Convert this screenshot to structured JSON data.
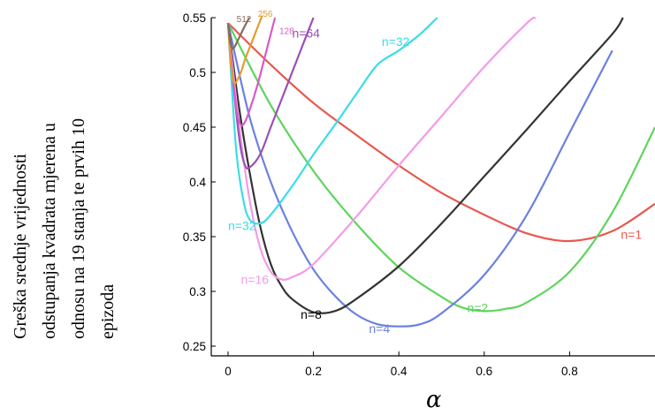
{
  "chart_data": {
    "type": "line",
    "ylabel_lines": [
      "Greška srednje vrijednosti",
      "odstupanja kvadrata  mjerena u",
      "odnosu na 19 stanja te prvih 10",
      "epizoda"
    ],
    "xlabel": "α",
    "xlim": [
      0,
      1.0
    ],
    "ylim": [
      0.25,
      0.55
    ],
    "xticks": [
      "0",
      "0.2",
      "0.4",
      "0.6",
      "0.8"
    ],
    "yticks": [
      "0.25",
      "0.3",
      "0.35",
      "0.4",
      "0.45",
      "0.5",
      "0.55"
    ],
    "grid": false,
    "series": [
      {
        "name": "n=1",
        "color": "#e8584f",
        "x": [
          0,
          0.1,
          0.2,
          0.3,
          0.4,
          0.5,
          0.6,
          0.7,
          0.8,
          0.9,
          1.0
        ],
        "y": [
          0.545,
          0.507,
          0.472,
          0.443,
          0.415,
          0.39,
          0.37,
          0.353,
          0.346,
          0.355,
          0.38
        ]
      },
      {
        "name": "n=2",
        "color": "#5ed45e",
        "x": [
          0,
          0.1,
          0.2,
          0.3,
          0.4,
          0.5,
          0.55,
          0.6,
          0.65,
          0.7,
          0.8,
          0.9,
          1.0
        ],
        "y": [
          0.545,
          0.47,
          0.41,
          0.362,
          0.322,
          0.295,
          0.285,
          0.282,
          0.284,
          0.29,
          0.318,
          0.372,
          0.45
        ]
      },
      {
        "name": "n=4",
        "color": "#6b80e0",
        "x": [
          0,
          0.05,
          0.1,
          0.15,
          0.2,
          0.25,
          0.3,
          0.35,
          0.4,
          0.45,
          0.5,
          0.6,
          0.7,
          0.8,
          0.9
        ],
        "y": [
          0.545,
          0.46,
          0.4,
          0.355,
          0.32,
          0.296,
          0.279,
          0.27,
          0.268,
          0.27,
          0.28,
          0.315,
          0.37,
          0.445,
          0.52
        ]
      },
      {
        "name": "n=8",
        "color": "#333333",
        "x": [
          0,
          0.025,
          0.05,
          0.075,
          0.1,
          0.125,
          0.15,
          0.2,
          0.25,
          0.3,
          0.4,
          0.5,
          0.6,
          0.7,
          0.8,
          0.9,
          0.925
        ],
        "y": [
          0.545,
          0.47,
          0.41,
          0.36,
          0.325,
          0.305,
          0.293,
          0.281,
          0.282,
          0.293,
          0.323,
          0.362,
          0.405,
          0.448,
          0.492,
          0.535,
          0.55
        ]
      },
      {
        "name": "n=16",
        "color": "#f39be8",
        "x": [
          0,
          0.025,
          0.05,
          0.075,
          0.1,
          0.125,
          0.15,
          0.2,
          0.3,
          0.4,
          0.5,
          0.6,
          0.7,
          0.72
        ],
        "y": [
          0.545,
          0.455,
          0.385,
          0.34,
          0.318,
          0.311,
          0.313,
          0.325,
          0.368,
          0.415,
          0.46,
          0.505,
          0.545,
          0.55
        ]
      },
      {
        "name": "n=32",
        "color": "#3bdde8",
        "x": [
          0,
          0.01,
          0.02,
          0.035,
          0.05,
          0.075,
          0.1,
          0.15,
          0.2,
          0.25,
          0.3,
          0.35,
          0.4,
          0.45,
          0.49
        ],
        "y": [
          0.545,
          0.48,
          0.425,
          0.385,
          0.366,
          0.362,
          0.37,
          0.396,
          0.425,
          0.452,
          0.48,
          0.507,
          0.52,
          0.535,
          0.55
        ]
      },
      {
        "name": "n=64",
        "color": "#9b4fb5",
        "x": [
          0,
          0.01,
          0.02,
          0.03,
          0.04,
          0.05,
          0.075,
          0.1,
          0.125,
          0.15,
          0.175,
          0.2
        ],
        "y": [
          0.545,
          0.5,
          0.46,
          0.43,
          0.415,
          0.413,
          0.425,
          0.45,
          0.475,
          0.5,
          0.525,
          0.55
        ]
      },
      {
        "name": "128",
        "color": "#d85ac8",
        "x": [
          0,
          0.01,
          0.02,
          0.03,
          0.04,
          0.05,
          0.07,
          0.09,
          0.11
        ],
        "y": [
          0.545,
          0.5,
          0.465,
          0.452,
          0.455,
          0.465,
          0.49,
          0.52,
          0.55
        ]
      },
      {
        "name": "256",
        "color": "#e89a30",
        "x": [
          0,
          0.005,
          0.01,
          0.015,
          0.02,
          0.03,
          0.04,
          0.05,
          0.06,
          0.07,
          0.08
        ],
        "y": [
          0.545,
          0.515,
          0.497,
          0.49,
          0.492,
          0.5,
          0.512,
          0.522,
          0.532,
          0.542,
          0.552
        ]
      },
      {
        "name": "512",
        "color": "#8a6a5a",
        "x": [
          0,
          0.005,
          0.01,
          0.015,
          0.02,
          0.03,
          0.04,
          0.05
        ],
        "y": [
          0.545,
          0.528,
          0.522,
          0.523,
          0.527,
          0.535,
          0.543,
          0.55
        ]
      }
    ],
    "labels": [
      {
        "text": "n=1",
        "x": 0.92,
        "y": 0.348,
        "color": "#e8584f",
        "size": "lab"
      },
      {
        "text": "n=2",
        "x": 0.56,
        "y": 0.281,
        "color": "#5ed45e",
        "size": "lab"
      },
      {
        "text": "n=4",
        "x": 0.33,
        "y": 0.262,
        "color": "#6b80e0",
        "size": "lab"
      },
      {
        "text": "n=8",
        "x": 0.17,
        "y": 0.275,
        "color": "#000000",
        "size": "lab"
      },
      {
        "text": "n=16",
        "x": 0.03,
        "y": 0.307,
        "color": "#f39be8",
        "size": "lab"
      },
      {
        "text": "n=32",
        "x": 0.0,
        "y": 0.356,
        "color": "#3bdde8",
        "size": "lab"
      },
      {
        "text": "n=32",
        "x": 0.36,
        "y": 0.524,
        "color": "#3bdde8",
        "size": "lab"
      },
      {
        "text": "n=64",
        "x": 0.15,
        "y": 0.532,
        "color": "#9b4fb5",
        "size": "lab"
      },
      {
        "text": "128",
        "x": 0.12,
        "y": 0.535,
        "color": "#d85ac8",
        "size": "lab-sm"
      },
      {
        "text": "256",
        "x": 0.07,
        "y": 0.551,
        "color": "#e89a30",
        "size": "lab-sm"
      },
      {
        "text": "512",
        "x": 0.02,
        "y": 0.546,
        "color": "#8a6a5a",
        "size": "lab-sm"
      }
    ]
  }
}
